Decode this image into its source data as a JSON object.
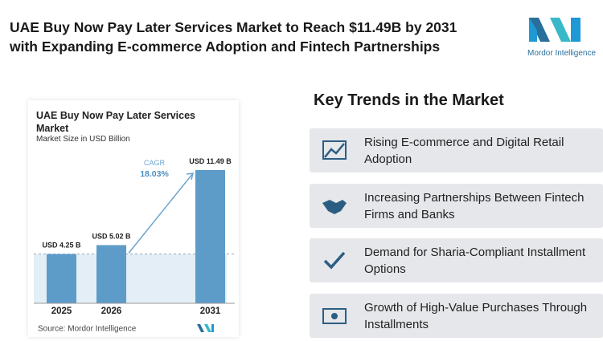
{
  "header": {
    "title_lines": [
      "UAE Buy Now Pay Later Services Market to Reach $11.49B by 2031",
      "with Expanding E-commerce Adoption and Fintech Partnerships"
    ]
  },
  "logo": {
    "text": "Mordor Intelligence"
  },
  "chart_data": {
    "type": "bar",
    "title": "UAE Buy Now Pay Later Services Market",
    "subtitle": "Market Size in USD Billion",
    "categories": [
      "2025",
      "2026",
      "2031"
    ],
    "values": [
      4.25,
      5.02,
      11.49
    ],
    "value_labels": [
      "USD 4.25 B",
      "USD 5.02 B",
      "USD 11.49 B"
    ],
    "color": "#5d9cc9",
    "annotation": {
      "label": "CAGR",
      "value": "18.03%"
    },
    "source": "Source: Mordor Intelligence"
  },
  "trends": {
    "title": "Key Trends in the Market",
    "items": [
      "Rising E-commerce and Digital Retail Adoption",
      "Increasing Partnerships Between Fintech Firms and Banks",
      "Demand for Sharia-Compliant Installment Options",
      "Growth of High-Value Purchases Through Installments"
    ]
  }
}
